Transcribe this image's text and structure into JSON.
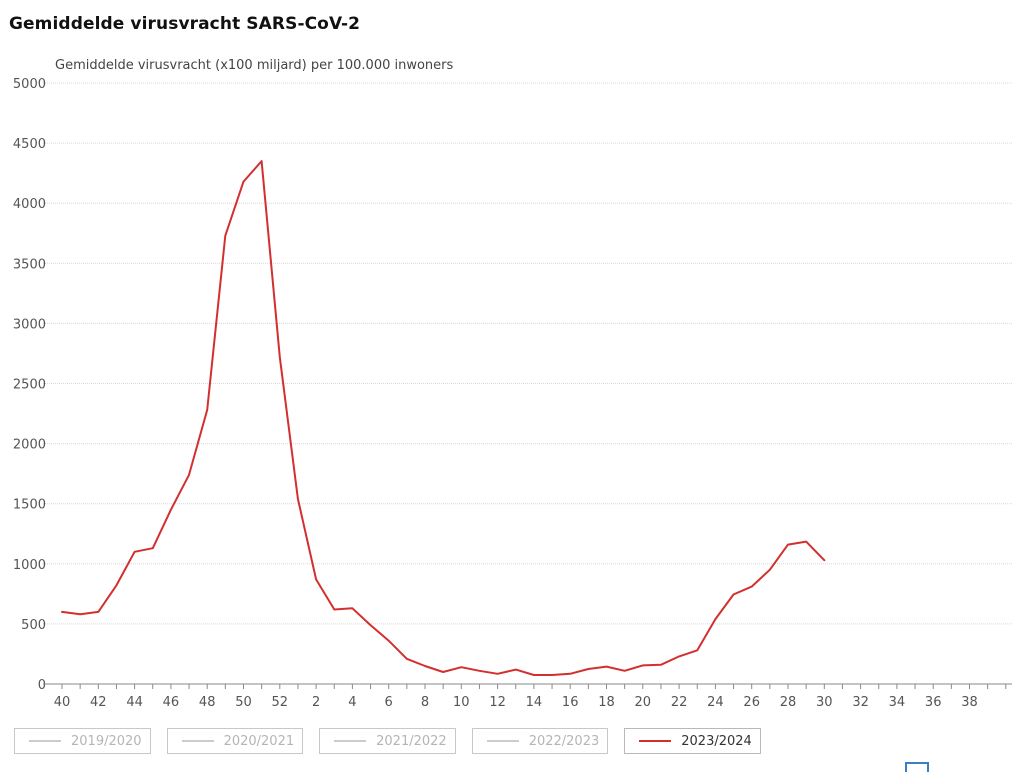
{
  "page": {
    "title": "Gemiddelde virusvracht SARS-CoV-2"
  },
  "chart_data": {
    "type": "line",
    "title": "Gemiddelde virusvracht SARS-CoV-2",
    "ylabel": "Gemiddelde virusvracht (x100 miljard) per 100.000 inwoners",
    "xlabel": "",
    "ylim": [
      0,
      5000
    ],
    "y_ticks": [
      "0",
      "500",
      "1000",
      "1500",
      "2000",
      "2500",
      "3000",
      "3500",
      "4000",
      "4500",
      "5000"
    ],
    "x_ticks": [
      "40",
      "42",
      "44",
      "46",
      "48",
      "50",
      "52",
      "2",
      "4",
      "6",
      "8",
      "10",
      "12",
      "14",
      "16",
      "18",
      "20",
      "22",
      "24",
      "26",
      "28",
      "30",
      "32",
      "34",
      "36",
      "38"
    ],
    "grid": "horizontal",
    "legend_position": "bottom",
    "series": [
      {
        "name": "2023/2024",
        "color": "#d32f2f",
        "active": true,
        "x": [
          "40",
          "41",
          "42",
          "43",
          "44",
          "45",
          "46",
          "47",
          "48",
          "49",
          "50",
          "51",
          "52",
          "1",
          "2",
          "3",
          "4",
          "5",
          "6",
          "7",
          "8",
          "9",
          "10",
          "11",
          "12",
          "13",
          "14",
          "15",
          "16",
          "17",
          "18",
          "19",
          "20",
          "21",
          "22",
          "23",
          "24",
          "25",
          "26",
          "27",
          "28",
          "29",
          "30"
        ],
        "values": [
          600,
          580,
          600,
          820,
          1100,
          1130,
          1450,
          1740,
          2280,
          3730,
          4180,
          4350,
          2720,
          1540,
          870,
          620,
          630,
          490,
          360,
          210,
          150,
          100,
          140,
          110,
          85,
          120,
          75,
          75,
          85,
          125,
          145,
          110,
          155,
          160,
          230,
          280,
          540,
          745,
          810,
          950,
          1160,
          1185,
          1030
        ]
      },
      {
        "name": "2019/2020",
        "color": "#cccccc",
        "active": false
      },
      {
        "name": "2020/2021",
        "color": "#cccccc",
        "active": false
      },
      {
        "name": "2021/2022",
        "color": "#cccccc",
        "active": false
      },
      {
        "name": "2022/2023",
        "color": "#cccccc",
        "active": false
      }
    ]
  },
  "legend": {
    "items": [
      {
        "label": "2019/2020",
        "color": "#cccccc",
        "active": false
      },
      {
        "label": "2020/2021",
        "color": "#cccccc",
        "active": false
      },
      {
        "label": "2021/2022",
        "color": "#cccccc",
        "active": false
      },
      {
        "label": "2022/2023",
        "color": "#cccccc",
        "active": false
      },
      {
        "label": "2023/2024",
        "color": "#d32f2f",
        "active": true
      }
    ]
  },
  "toolbar": {
    "export_icon": "export-icon"
  }
}
